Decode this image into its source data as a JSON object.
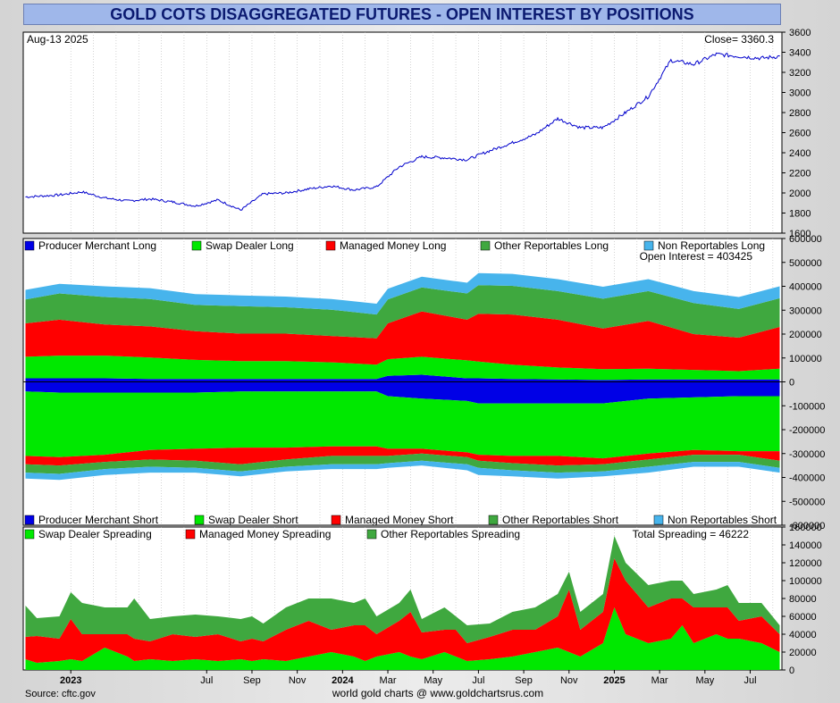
{
  "title": "GOLD COTS DISAGGREGATED FUTURES - OPEN INTEREST BY POSITIONS",
  "source": "Source: cftc.gov",
  "credit": "world gold charts @ www.goldchartsrus.com",
  "x_ticks": [
    {
      "label": "2023",
      "t": 0.5,
      "bold": true
    },
    {
      "label": "Jul",
      "t": 6.5,
      "bold": false
    },
    {
      "label": "Sep",
      "t": 8.5,
      "bold": false
    },
    {
      "label": "Nov",
      "t": 10.5,
      "bold": false
    },
    {
      "label": "2024",
      "t": 12.5,
      "bold": true
    },
    {
      "label": "Mar",
      "t": 14.5,
      "bold": false
    },
    {
      "label": "May",
      "t": 16.5,
      "bold": false
    },
    {
      "label": "Jul",
      "t": 18.5,
      "bold": false
    },
    {
      "label": "Sep",
      "t": 20.5,
      "bold": false
    },
    {
      "label": "Nov",
      "t": 22.5,
      "bold": false
    },
    {
      "label": "2025",
      "t": 24.5,
      "bold": true
    },
    {
      "label": "Mar",
      "t": 26.5,
      "bold": false
    },
    {
      "label": "May",
      "t": 28.5,
      "bold": false
    },
    {
      "label": "Jul",
      "t": 30.5,
      "bold": false
    }
  ],
  "colors": {
    "producer": "#0000e6",
    "swap": "#00e800",
    "managed": "#ff0000",
    "other": "#3fa83f",
    "nonrep": "#47b4ec",
    "price_line": "#0000cc"
  },
  "chart_data": [
    {
      "type": "line",
      "name": "price",
      "date_label": "Aug-13  2025",
      "close_label": "Close= 3360.3",
      "ylim": [
        1600,
        3600
      ],
      "yticks": [
        1600,
        1800,
        2000,
        2200,
        2400,
        2600,
        2800,
        3000,
        3200,
        3400,
        3600
      ],
      "x": [
        -1.5,
        0,
        1,
        2,
        3,
        4,
        5,
        6,
        7,
        8,
        9,
        10,
        11,
        12,
        13,
        14,
        15,
        16,
        17,
        18,
        19,
        20,
        21,
        22,
        23,
        24,
        25,
        26,
        27,
        28,
        29,
        30,
        31,
        31.8
      ],
      "values": [
        1960,
        1980,
        2010,
        1950,
        1920,
        1940,
        1910,
        1870,
        1930,
        1830,
        1990,
        2000,
        2040,
        2070,
        2030,
        2060,
        2260,
        2360,
        2350,
        2330,
        2420,
        2500,
        2580,
        2740,
        2650,
        2650,
        2800,
        2960,
        3320,
        3280,
        3380,
        3360,
        3340,
        3360
      ]
    },
    {
      "type": "area",
      "name": "open-interest",
      "long_legend": [
        "Producer Merchant Long",
        "Swap Dealer Long",
        "Managed Money Long",
        "Other Reportables Long",
        "Non Reportables Long"
      ],
      "short_legend": [
        "Producer Merchant Short",
        "Swap Dealer Short",
        "Managed Money Short",
        "Other Reportables Short",
        "Non Reportables Short"
      ],
      "open_interest_label": "Open Interest = 403425",
      "ylim": [
        -600000,
        600000
      ],
      "yticks": [
        -600000,
        -500000,
        -400000,
        -300000,
        -200000,
        -100000,
        0,
        100000,
        200000,
        300000,
        400000,
        500000,
        600000
      ],
      "x": [
        -1.5,
        0,
        2,
        4,
        6,
        8,
        10,
        12,
        14,
        14.5,
        16,
        18,
        18.5,
        20,
        22,
        24,
        26,
        28,
        30,
        31.8
      ],
      "long_series": [
        {
          "name": "Producer Merchant Long",
          "values": [
            15000,
            15000,
            15000,
            12000,
            12000,
            12000,
            12000,
            12000,
            12000,
            25000,
            30000,
            15000,
            15000,
            12000,
            10000,
            8000,
            10000,
            10000,
            10000,
            10000
          ]
        },
        {
          "name": "Swap Dealer Long",
          "values": [
            90000,
            95000,
            95000,
            90000,
            80000,
            75000,
            75000,
            70000,
            60000,
            70000,
            75000,
            75000,
            70000,
            60000,
            50000,
            45000,
            45000,
            40000,
            35000,
            45000
          ]
        },
        {
          "name": "Managed Money Long",
          "values": [
            140000,
            150000,
            130000,
            130000,
            120000,
            115000,
            115000,
            110000,
            110000,
            150000,
            190000,
            170000,
            200000,
            210000,
            200000,
            170000,
            200000,
            150000,
            140000,
            175000
          ]
        },
        {
          "name": "Other Reportables Long",
          "values": [
            100000,
            110000,
            115000,
            115000,
            110000,
            115000,
            110000,
            110000,
            100000,
            100000,
            100000,
            110000,
            120000,
            120000,
            120000,
            125000,
            125000,
            130000,
            120000,
            120000
          ]
        },
        {
          "name": "Non Reportables Long",
          "values": [
            40000,
            40000,
            45000,
            45000,
            45000,
            45000,
            45000,
            45000,
            45000,
            45000,
            45000,
            45000,
            50000,
            50000,
            50000,
            50000,
            50000,
            50000,
            50000,
            50000
          ]
        }
      ],
      "short_series": [
        {
          "name": "Producer Merchant Short",
          "values": [
            40000,
            45000,
            45000,
            45000,
            45000,
            40000,
            40000,
            40000,
            40000,
            60000,
            70000,
            80000,
            90000,
            90000,
            90000,
            90000,
            70000,
            65000,
            60000,
            60000
          ]
        },
        {
          "name": "Swap Dealer Short",
          "values": [
            270000,
            270000,
            260000,
            240000,
            235000,
            235000,
            235000,
            230000,
            230000,
            220000,
            210000,
            215000,
            215000,
            220000,
            220000,
            230000,
            230000,
            220000,
            230000,
            230000
          ]
        },
        {
          "name": "Managed Money Short",
          "values": [
            35000,
            35000,
            30000,
            40000,
            50000,
            70000,
            50000,
            40000,
            40000,
            30000,
            20000,
            20000,
            25000,
            30000,
            40000,
            25000,
            25000,
            20000,
            15000,
            40000
          ]
        },
        {
          "name": "Other Reportables Short",
          "values": [
            35000,
            35000,
            30000,
            30000,
            30000,
            30000,
            30000,
            35000,
            35000,
            30000,
            30000,
            30000,
            30000,
            30000,
            30000,
            30000,
            30000,
            30000,
            30000,
            30000
          ]
        },
        {
          "name": "Non Reportables Short",
          "values": [
            25000,
            25000,
            25000,
            25000,
            20000,
            20000,
            20000,
            20000,
            20000,
            20000,
            20000,
            25000,
            30000,
            25000,
            25000,
            20000,
            25000,
            20000,
            20000,
            20000
          ]
        }
      ]
    },
    {
      "type": "area",
      "name": "spreading",
      "legend": [
        "Swap Dealer Spreading",
        "Managed Money Spreading",
        "Other Reportables Spreading"
      ],
      "total_label": "Total Spreading = 46222",
      "ylim": [
        0,
        160000
      ],
      "yticks": [
        0,
        20000,
        40000,
        60000,
        80000,
        100000,
        120000,
        140000,
        160000
      ],
      "x": [
        -1.5,
        -1,
        0,
        0.5,
        1,
        2,
        3,
        3.3,
        4,
        5,
        6,
        7,
        8,
        8.5,
        9,
        10,
        11,
        12,
        13,
        13.5,
        14,
        15,
        15.5,
        16,
        17,
        17.5,
        18,
        19,
        20,
        21,
        22,
        22.5,
        23,
        24,
        24.5,
        25,
        26,
        27,
        27.5,
        28,
        29,
        29.5,
        30,
        31,
        31.8
      ],
      "series": [
        {
          "name": "Swap Dealer Spreading",
          "values": [
            12000,
            8000,
            10000,
            12000,
            10000,
            25000,
            15000,
            10000,
            12000,
            10000,
            12000,
            10000,
            12000,
            10000,
            12000,
            10000,
            15000,
            20000,
            15000,
            10000,
            15000,
            20000,
            15000,
            12000,
            20000,
            15000,
            10000,
            12000,
            15000,
            20000,
            25000,
            20000,
            15000,
            30000,
            70000,
            40000,
            30000,
            35000,
            50000,
            30000,
            40000,
            35000,
            35000,
            30000,
            20000
          ]
        },
        {
          "name": "Managed Money Spreading",
          "values": [
            25000,
            30000,
            25000,
            45000,
            30000,
            15000,
            25000,
            25000,
            20000,
            30000,
            25000,
            30000,
            20000,
            25000,
            20000,
            35000,
            40000,
            25000,
            35000,
            40000,
            25000,
            35000,
            50000,
            30000,
            25000,
            30000,
            20000,
            25000,
            30000,
            25000,
            35000,
            70000,
            30000,
            35000,
            55000,
            60000,
            40000,
            45000,
            30000,
            40000,
            30000,
            35000,
            20000,
            30000,
            20000
          ]
        },
        {
          "name": "Other Reportables Spreading",
          "values": [
            35000,
            20000,
            25000,
            30000,
            35000,
            30000,
            30000,
            45000,
            25000,
            20000,
            25000,
            20000,
            25000,
            25000,
            20000,
            25000,
            25000,
            35000,
            25000,
            30000,
            20000,
            20000,
            25000,
            15000,
            25000,
            15000,
            20000,
            15000,
            20000,
            25000,
            25000,
            20000,
            20000,
            20000,
            25000,
            20000,
            25000,
            20000,
            20000,
            15000,
            20000,
            25000,
            20000,
            15000,
            10000
          ]
        }
      ]
    }
  ]
}
